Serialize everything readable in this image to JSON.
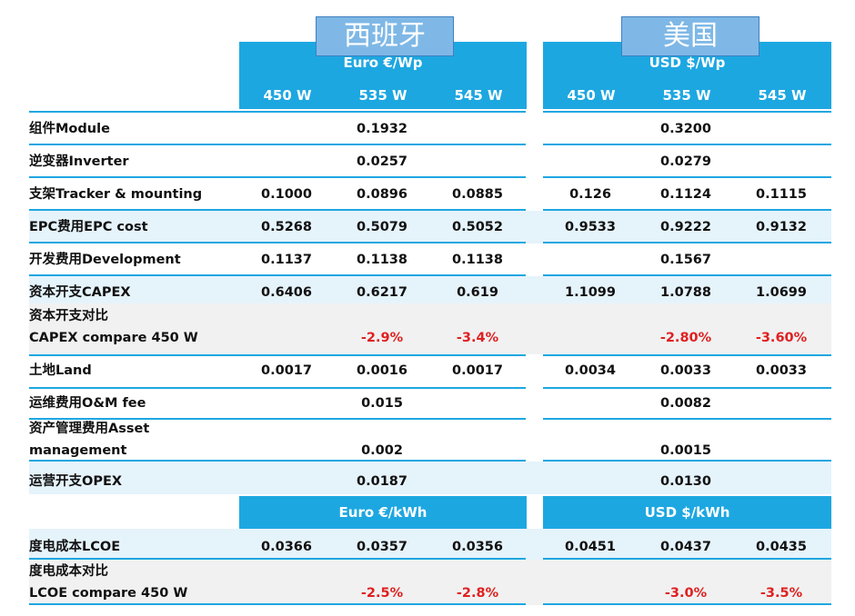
{
  "regions": {
    "spain": {
      "name": "西班牙",
      "unit": "Euro €/Wp",
      "lcoe_unit": "Euro €/kWh"
    },
    "usa": {
      "name": "美国",
      "unit": "USD $/Wp",
      "lcoe_unit": "USD $/kWh"
    }
  },
  "watts": [
    "450 W",
    "535 W",
    "545 W"
  ],
  "rows": {
    "module": {
      "label": "组件Module",
      "spain": [
        "",
        "0.1932",
        ""
      ],
      "usa": [
        "",
        "0.3200",
        ""
      ]
    },
    "inverter": {
      "label": "逆变器Inverter",
      "spain": [
        "",
        "0.0257",
        ""
      ],
      "usa": [
        "",
        "0.0279",
        ""
      ]
    },
    "tracker": {
      "label": "支架Tracker & mounting",
      "spain": [
        "0.1000",
        "0.0896",
        "0.0885"
      ],
      "usa": [
        "0.126",
        "0.1124",
        "0.1115"
      ]
    },
    "epc": {
      "label": "EPC费用EPC cost",
      "spain": [
        "0.5268",
        "0.5079",
        "0.5052"
      ],
      "usa": [
        "0.9533",
        "0.9222",
        "0.9132"
      ]
    },
    "development": {
      "label": "开发费用Development",
      "spain": [
        "0.1137",
        "0.1138",
        "0.1138"
      ],
      "usa": [
        "",
        "0.1567",
        ""
      ]
    },
    "capex": {
      "label": "资本开支CAPEX",
      "spain": [
        "0.6406",
        "0.6217",
        "0.619"
      ],
      "usa": [
        "1.1099",
        "1.0788",
        "1.0699"
      ]
    },
    "capex_compare": {
      "label_line1": "资本开支对比",
      "label_line2": "CAPEX compare 450 W",
      "spain": [
        "",
        "-2.9%",
        "-3.4%"
      ],
      "usa": [
        "",
        "-2.80%",
        "-3.60%"
      ]
    },
    "land": {
      "label": "土地Land",
      "spain": [
        "0.0017",
        "0.0016",
        "0.0017"
      ],
      "usa": [
        "0.0034",
        "0.0033",
        "0.0033"
      ]
    },
    "om": {
      "label": "运维费用O&M fee",
      "spain": [
        "",
        "0.015",
        ""
      ],
      "usa": [
        "",
        "0.0082",
        ""
      ]
    },
    "asset": {
      "label_line1": "资产管理费用Asset",
      "label_line2": "management",
      "spain": [
        "",
        "0.002",
        ""
      ],
      "usa": [
        "",
        "0.0015",
        ""
      ]
    },
    "opex": {
      "label": "运营开支OPEX",
      "spain": [
        "",
        "0.0187",
        ""
      ],
      "usa": [
        "",
        "0.0130",
        ""
      ]
    },
    "lcoe": {
      "label": "度电成本LCOE",
      "spain": [
        "0.0366",
        "0.0357",
        "0.0356"
      ],
      "usa": [
        "0.0451",
        "0.0437",
        "0.0435"
      ]
    },
    "lcoe_compare": {
      "label_line1": "度电成本对比",
      "label_line2": "LCOE compare 450 W",
      "spain": [
        "",
        "-2.5%",
        "-2.8%"
      ],
      "usa": [
        "",
        "-3.0%",
        "-3.5%"
      ]
    }
  },
  "colors": {
    "header_blue": "#1da7e1",
    "country_box": "#7fb8e6",
    "negative_red": "#e02020",
    "row_tint": "#e5f3fb"
  }
}
